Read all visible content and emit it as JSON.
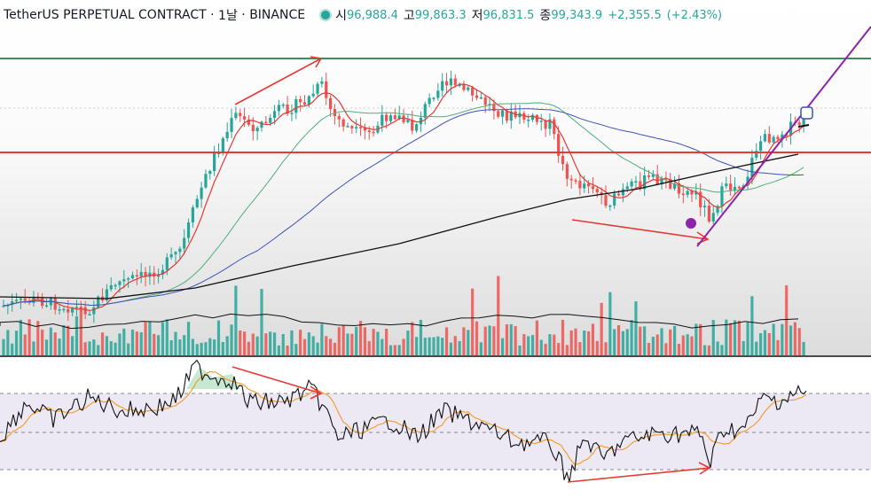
{
  "legend": {
    "symbol": "TetherUS PERPETUAL CONTRACT",
    "interval": "1날",
    "exchange": "BINANCE",
    "sep": "·",
    "open_label": "시",
    "open": "96,988.4",
    "high_label": "고",
    "high": "99,863.3",
    "low_label": "저",
    "low": "96,831.5",
    "close_label": "종",
    "close": "99,343.9",
    "change": "+2,355.5",
    "change_pct": "(+2.43%)"
  },
  "colors": {
    "up": "#26a69a",
    "down": "#ef5350",
    "ma_short": "#e53935",
    "ma_mid": "#4caf7d",
    "ma_long": "#3f51b5",
    "ma_200": "#111111",
    "rsi": "#111111",
    "rsi_ma": "#f0a030",
    "annotation_red": "#e53935",
    "annotation_purple": "#8e24aa",
    "horizontal_green": "#3a8f5a",
    "horizontal_red": "#e53935"
  },
  "chart_data": [
    {
      "type": "candlestick",
      "title": "TetherUS PERPETUAL CONTRACT · 1날 · BINANCE",
      "description": "Daily candlesticks with moving averages, volume bars and drawn trendlines / divergence arrows",
      "price_scale": {
        "approx_range": [
          55000,
          112000
        ]
      },
      "overlays": [
        "short MA (red)",
        "mid MA (green)",
        "long MA (blue)",
        "200 MA (black)",
        "volume",
        "volume MA (black)"
      ],
      "annotations": [
        "green horizontal resistance line",
        "red horizontal support/resistance line",
        "red divergence arrows",
        "purple rising trendline",
        "purple alarm marker"
      ]
    },
    {
      "type": "line",
      "description": "RSI oscillator panel with signal line and dashed bands",
      "series": [
        {
          "values": []
        }
      ],
      "bands": [
        70,
        50,
        30
      ],
      "annotations": [
        "red bearish divergence arrow (top)",
        "red bullish divergence arrow (bottom)"
      ]
    }
  ]
}
